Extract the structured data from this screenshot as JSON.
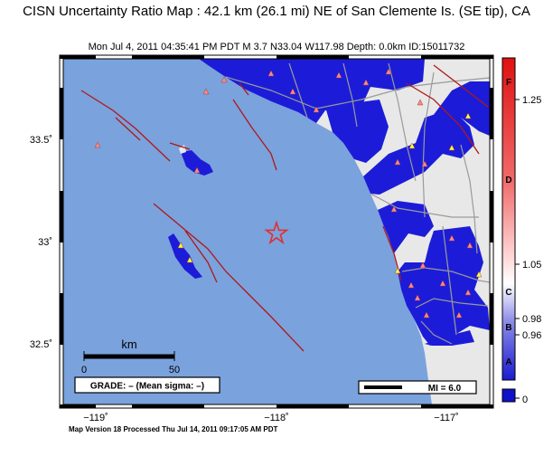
{
  "title": "CISN Uncertainty Ratio Map : 42.1 km (26.1 mi) NE of San Clemente Is. (SE tip), CA",
  "subtitle": "Mon Jul  4, 2011 04:35:41 PM PDT    M 3.7    N33.04 W117.98    Depth: 0.0km    ID:15011732",
  "footer": "Map Version 18 Processed Thu Jul 14, 2011 09:17:05 AM PDT",
  "axes": {
    "y_ticks": [
      {
        "label": "33.5˚",
        "value": 33.5
      },
      {
        "label": "33˚",
        "value": 33.0
      },
      {
        "label": "32.5˚",
        "value": 32.5
      }
    ],
    "x_ticks": [
      {
        "label": "−119˚",
        "value": -119
      },
      {
        "label": "−118˚",
        "value": -118
      },
      {
        "label": "−117˚",
        "value": -117
      }
    ]
  },
  "scale_bar": {
    "unit": "km",
    "min_label": "0",
    "max_label": "50"
  },
  "grade_box": "GRADE: – (Mean sigma: –)",
  "legend_box": "MI = 6.0",
  "colorbar": {
    "value_labels": [
      "1.25",
      "1.05",
      "0.98",
      "0.96",
      "0"
    ],
    "grade_labels": [
      "F",
      "D",
      "C",
      "B",
      "A"
    ],
    "colors": {
      "low": "#1a1ad0",
      "white": "#ffffff",
      "high": "#e02020",
      "bottom_block": "#1111cc"
    }
  },
  "epicenter": {
    "lat": 33.04,
    "lon": -117.98,
    "marker": "star",
    "color": "#e03030"
  },
  "colors": {
    "ocean": "#7aa2dd",
    "land": "#e8e8e8",
    "uncertainty": "#1c1cd8",
    "fault": "#b01818",
    "road": "#999999",
    "station_low": "#ff8888",
    "station_high": "#ffff33"
  }
}
